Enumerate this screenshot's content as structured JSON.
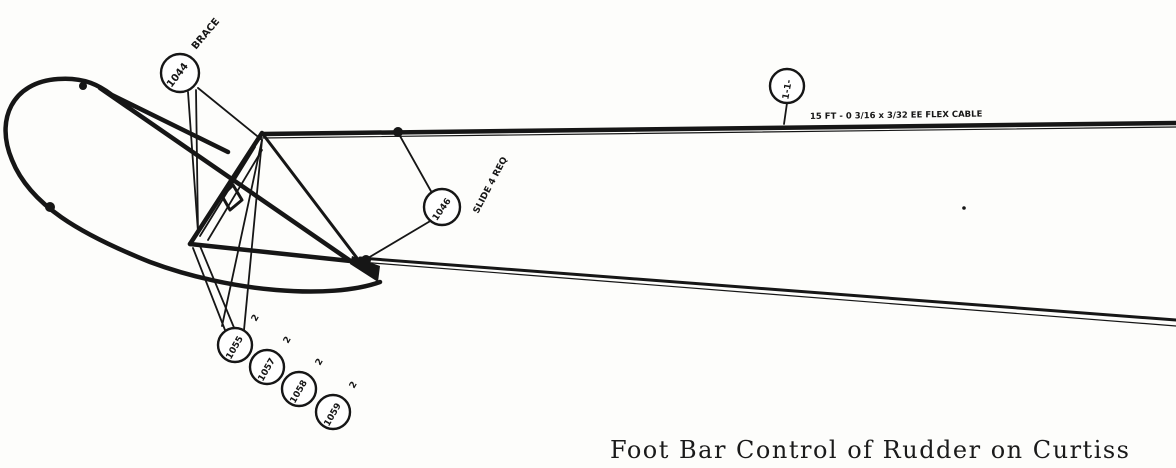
{
  "caption": "Foot Bar Control of Rudder on Curtiss",
  "colors": {
    "ink": "#161616",
    "paper": "#fdfdfb"
  },
  "callouts": {
    "top_left_bubble": "1044",
    "top_left_note": "BRACE",
    "cable_bubble": "1-1-",
    "cable_note": "15 FT - 0 3/16 x 3/32 EE FLEX CABLE",
    "middle_bubble": "1046",
    "middle_note": "SLIDE 4 REQ",
    "lower_bubble_1": "1055",
    "lower_note_1": "2",
    "lower_bubble_2": "1057",
    "lower_note_2": "2",
    "lower_bubble_3": "1058",
    "lower_note_3": "2",
    "lower_bubble_4": "1059",
    "lower_note_4": "2"
  }
}
